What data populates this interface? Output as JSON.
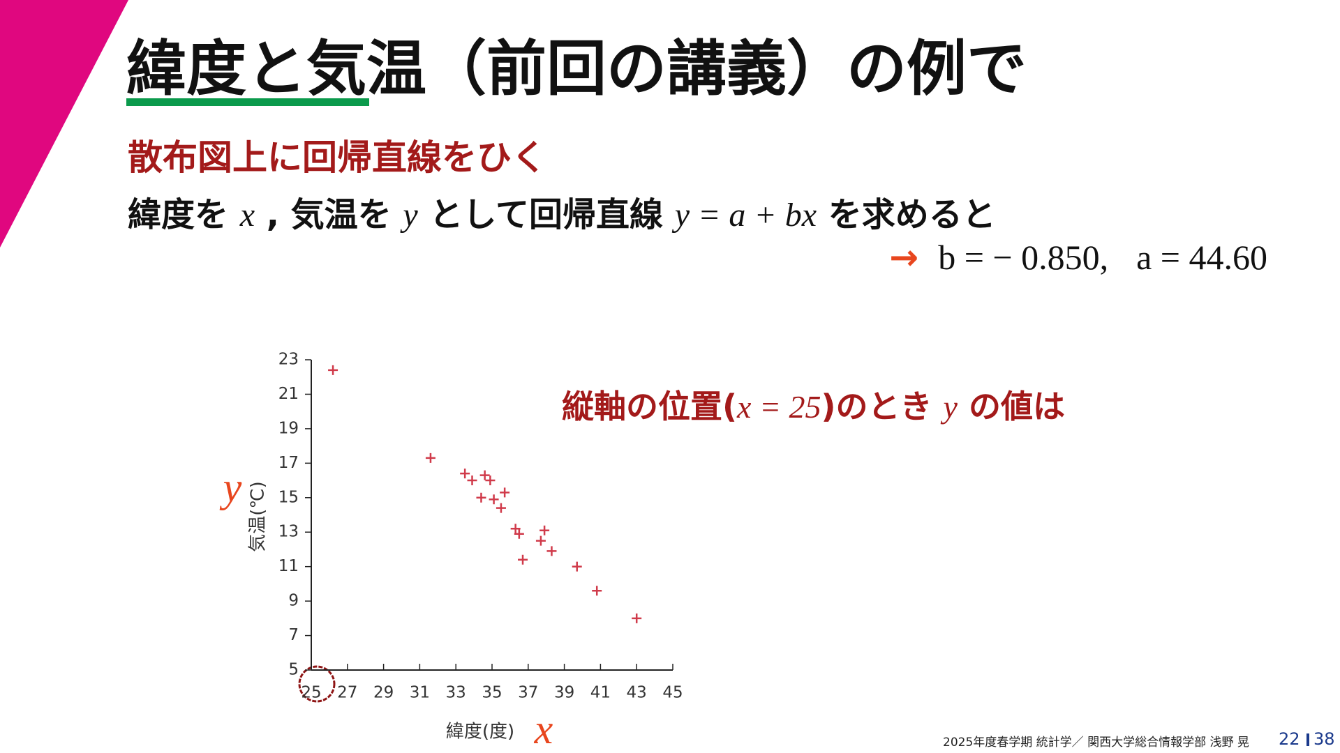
{
  "slide": {
    "title": "緯度と気温（前回の講義）の例で",
    "subtitle": "散布図上に回帰直線をひく",
    "body": [
      "緯度を ",
      "x",
      " , 気温を ",
      "y",
      " として回帰直線 ",
      "y = a + bx",
      " を求めると"
    ],
    "result": [
      "→",
      "b = − 0.850,",
      "a = 44.60"
    ],
    "footer": "2025年度春学期  統計学／  関西大学総合情報学部  浅野  晃",
    "page": "22",
    "total": "38"
  },
  "chart_data": {
    "type": "scatter",
    "xlabel": "緯度(度)",
    "ylabel": "気温(℃)",
    "x_symbol": "x",
    "y_symbol": "y",
    "annotation": [
      "縦軸の位置(",
      "x = 25",
      ")のとき ",
      "y",
      " の値は"
    ],
    "xlim": [
      25,
      45
    ],
    "ylim": [
      5,
      23
    ],
    "xticks": [
      25,
      27,
      29,
      31,
      33,
      35,
      37,
      39,
      41,
      43,
      45
    ],
    "yticks": [
      5,
      7,
      9,
      11,
      13,
      15,
      17,
      19,
      21,
      23
    ],
    "color": "#d03a4a",
    "x": [
      26.2,
      31.6,
      33.5,
      33.9,
      34.6,
      34.9,
      34.4,
      35.1,
      35.7,
      35.5,
      36.3,
      36.5,
      36.7,
      37.9,
      37.7,
      38.3,
      39.7,
      40.8,
      43.0
    ],
    "values": [
      22.4,
      17.3,
      16.4,
      16.0,
      16.3,
      16.0,
      15.0,
      14.9,
      15.3,
      14.4,
      13.2,
      12.9,
      11.4,
      13.1,
      12.5,
      11.9,
      11.0,
      9.6,
      8.0
    ]
  }
}
